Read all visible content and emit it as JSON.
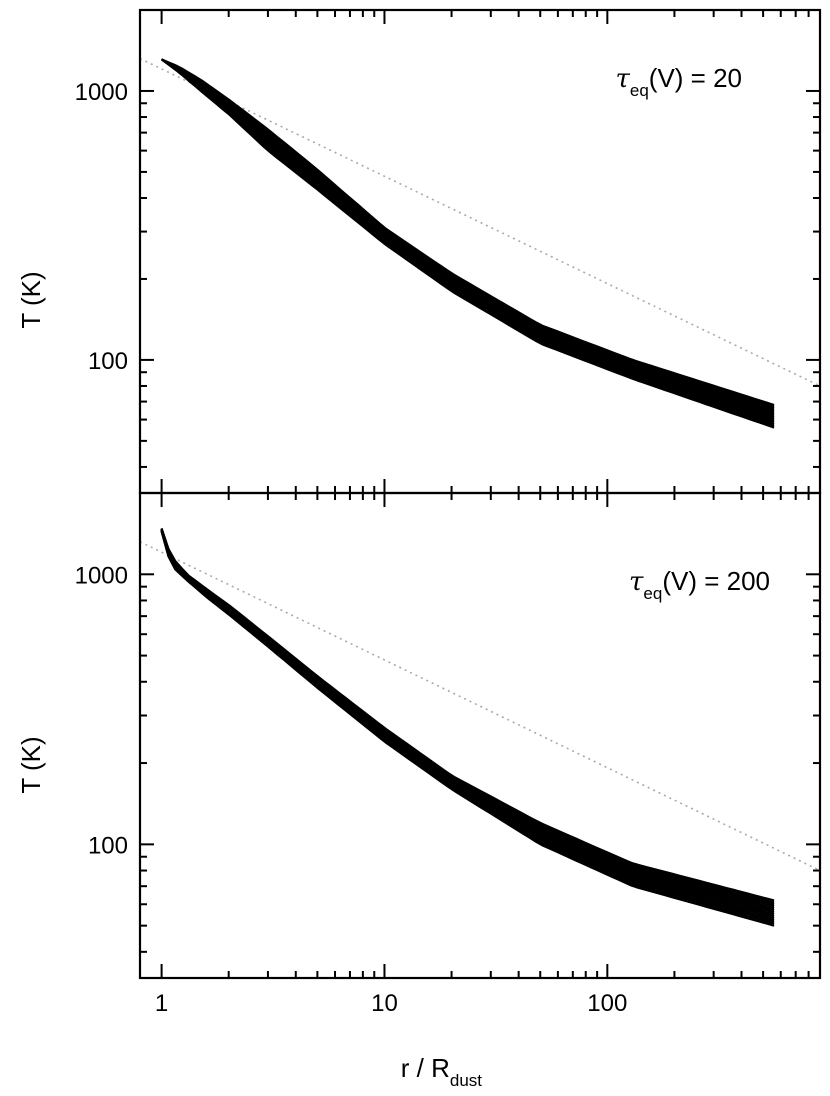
{
  "figure": {
    "xlabel_main": "r / R",
    "xlabel_sub": "dust",
    "x_ticks": [
      "1",
      "10",
      "100"
    ],
    "x_tick_values": [
      1,
      10,
      100
    ],
    "xlim": [
      0.8,
      900
    ],
    "x_scale": "log",
    "y_scale": "log",
    "grid": false
  },
  "chart_data": [
    {
      "type": "line",
      "panel": "top",
      "annotation": {
        "symbol": "τ",
        "sub": "eq",
        "rest": "(V) = 20"
      },
      "ylabel": "T (K)",
      "y_ticks": [
        "1000",
        "100"
      ],
      "y_tick_values": [
        1000,
        100
      ],
      "ylim": [
        32,
        2000
      ],
      "reference_line": {
        "style": "dotted",
        "color": "#aaaaaa",
        "x": [
          0.8,
          900
        ],
        "y": [
          1320,
          80
        ]
      },
      "band": {
        "color": "#000000",
        "n_curves": 14,
        "x": [
          1,
          1.2,
          1.5,
          2,
          3,
          5,
          10,
          20,
          50,
          130,
          560
        ],
        "upper": [
          1310,
          1230,
          1100,
          930,
          720,
          510,
          310,
          210,
          135,
          100,
          68
        ],
        "lower": [
          1310,
          1170,
          1000,
          820,
          600,
          430,
          270,
          180,
          115,
          85,
          56
        ]
      }
    },
    {
      "type": "line",
      "panel": "bottom",
      "annotation": {
        "symbol": "τ",
        "sub": "eq",
        "rest": "(V) = 200"
      },
      "ylabel": "T (K)",
      "y_ticks": [
        "1000",
        "100"
      ],
      "y_tick_values": [
        1000,
        100
      ],
      "ylim": [
        32,
        2000
      ],
      "reference_line": {
        "style": "dotted",
        "color": "#aaaaaa",
        "x": [
          0.8,
          900
        ],
        "y": [
          1320,
          80
        ]
      },
      "band": {
        "color": "#000000",
        "n_curves": 14,
        "x": [
          1,
          1.1,
          1.3,
          1.6,
          2,
          3,
          5,
          10,
          20,
          50,
          130,
          560
        ],
        "upper": [
          1480,
          1170,
          1000,
          880,
          770,
          590,
          420,
          270,
          180,
          120,
          85,
          62
        ],
        "lower": [
          1440,
          1080,
          950,
          820,
          710,
          540,
          380,
          240,
          160,
          100,
          70,
          50
        ]
      }
    }
  ]
}
